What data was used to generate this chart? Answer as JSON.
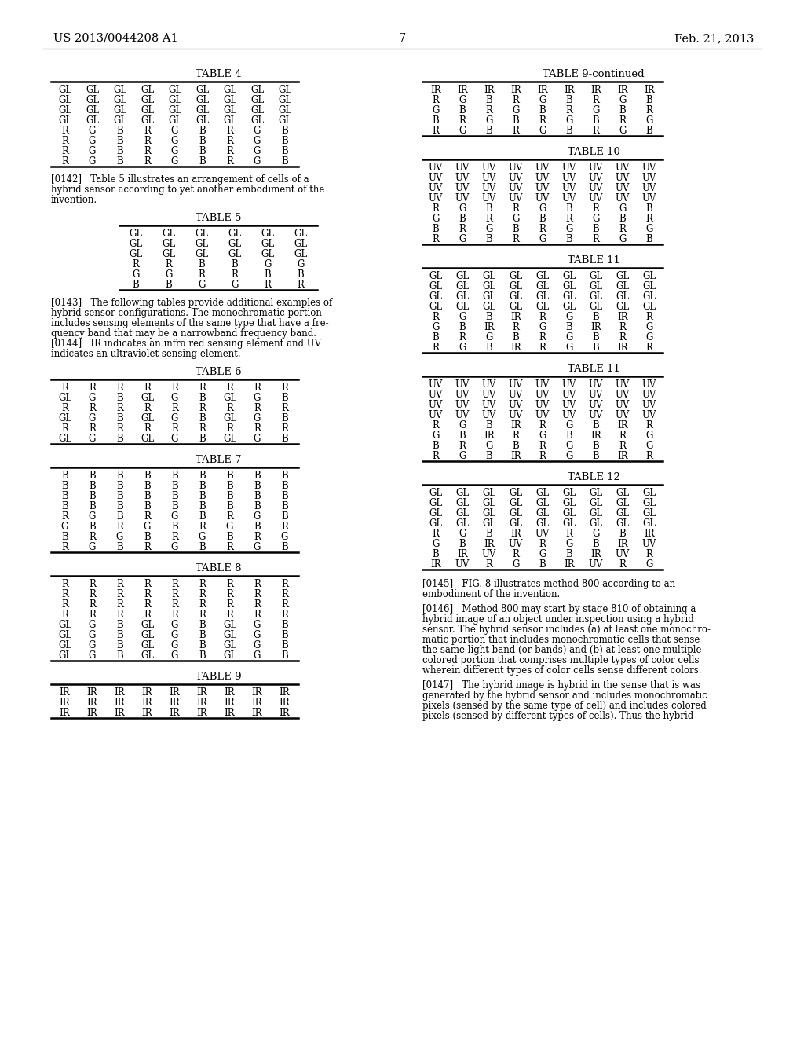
{
  "header_left": "US 2013/0044208 A1",
  "header_right": "Feb. 21, 2013",
  "page_number": "7",
  "background_color": "#ffffff",
  "tables": {
    "table4": {
      "title": "TABLE 4",
      "rows": [
        [
          "GL",
          "GL",
          "GL",
          "GL",
          "GL",
          "GL",
          "GL",
          "GL",
          "GL"
        ],
        [
          "GL",
          "GL",
          "GL",
          "GL",
          "GL",
          "GL",
          "GL",
          "GL",
          "GL"
        ],
        [
          "GL",
          "GL",
          "GL",
          "GL",
          "GL",
          "GL",
          "GL",
          "GL",
          "GL"
        ],
        [
          "GL",
          "GL",
          "GL",
          "GL",
          "GL",
          "GL",
          "GL",
          "GL",
          "GL"
        ],
        [
          "R",
          "G",
          "B",
          "R",
          "G",
          "B",
          "R",
          "G",
          "B"
        ],
        [
          "R",
          "G",
          "B",
          "R",
          "G",
          "B",
          "R",
          "G",
          "B"
        ],
        [
          "R",
          "G",
          "B",
          "R",
          "G",
          "B",
          "R",
          "G",
          "B"
        ],
        [
          "R",
          "G",
          "B",
          "R",
          "G",
          "B",
          "R",
          "G",
          "B"
        ]
      ]
    },
    "table5": {
      "title": "TABLE 5",
      "rows": [
        [
          "GL",
          "GL",
          "GL",
          "GL",
          "GL",
          "GL"
        ],
        [
          "GL",
          "GL",
          "GL",
          "GL",
          "GL",
          "GL"
        ],
        [
          "GL",
          "GL",
          "GL",
          "GL",
          "GL",
          "GL"
        ],
        [
          "R",
          "R",
          "B",
          "B",
          "G",
          "G"
        ],
        [
          "G",
          "G",
          "R",
          "R",
          "B",
          "B"
        ],
        [
          "B",
          "B",
          "G",
          "G",
          "R",
          "R"
        ]
      ]
    },
    "table6": {
      "title": "TABLE 6",
      "rows": [
        [
          "R",
          "R",
          "R",
          "R",
          "R",
          "R",
          "R",
          "R",
          "R"
        ],
        [
          "GL",
          "G",
          "B",
          "GL",
          "G",
          "B",
          "GL",
          "G",
          "B"
        ],
        [
          "R",
          "R",
          "R",
          "R",
          "R",
          "R",
          "R",
          "R",
          "R"
        ],
        [
          "GL",
          "G",
          "B",
          "GL",
          "G",
          "B",
          "GL",
          "G",
          "B"
        ],
        [
          "R",
          "R",
          "R",
          "R",
          "R",
          "R",
          "R",
          "R",
          "R"
        ],
        [
          "GL",
          "G",
          "B",
          "GL",
          "G",
          "B",
          "GL",
          "G",
          "B"
        ]
      ]
    },
    "table7": {
      "title": "TABLE 7",
      "rows": [
        [
          "B",
          "B",
          "B",
          "B",
          "B",
          "B",
          "B",
          "B",
          "B"
        ],
        [
          "B",
          "B",
          "B",
          "B",
          "B",
          "B",
          "B",
          "B",
          "B"
        ],
        [
          "B",
          "B",
          "B",
          "B",
          "B",
          "B",
          "B",
          "B",
          "B"
        ],
        [
          "B",
          "B",
          "B",
          "B",
          "B",
          "B",
          "B",
          "B",
          "B"
        ],
        [
          "R",
          "G",
          "B",
          "R",
          "G",
          "B",
          "R",
          "G",
          "B"
        ],
        [
          "G",
          "B",
          "R",
          "G",
          "B",
          "R",
          "G",
          "B",
          "R"
        ],
        [
          "B",
          "R",
          "G",
          "B",
          "R",
          "G",
          "B",
          "R",
          "G"
        ],
        [
          "R",
          "G",
          "B",
          "R",
          "G",
          "B",
          "R",
          "G",
          "B"
        ]
      ]
    },
    "table8": {
      "title": "TABLE 8",
      "rows": [
        [
          "R",
          "R",
          "R",
          "R",
          "R",
          "R",
          "R",
          "R",
          "R"
        ],
        [
          "R",
          "R",
          "R",
          "R",
          "R",
          "R",
          "R",
          "R",
          "R"
        ],
        [
          "R",
          "R",
          "R",
          "R",
          "R",
          "R",
          "R",
          "R",
          "R"
        ],
        [
          "R",
          "R",
          "R",
          "R",
          "R",
          "R",
          "R",
          "R",
          "R"
        ],
        [
          "GL",
          "G",
          "B",
          "GL",
          "G",
          "B",
          "GL",
          "G",
          "B"
        ],
        [
          "GL",
          "G",
          "B",
          "GL",
          "G",
          "B",
          "GL",
          "G",
          "B"
        ],
        [
          "GL",
          "G",
          "B",
          "GL",
          "G",
          "B",
          "GL",
          "G",
          "B"
        ],
        [
          "GL",
          "G",
          "B",
          "GL",
          "G",
          "B",
          "GL",
          "G",
          "B"
        ]
      ]
    },
    "table9": {
      "title": "TABLE 9",
      "rows": [
        [
          "IR",
          "IR",
          "IR",
          "IR",
          "IR",
          "IR",
          "IR",
          "IR",
          "IR"
        ],
        [
          "IR",
          "IR",
          "IR",
          "IR",
          "IR",
          "IR",
          "IR",
          "IR",
          "IR"
        ],
        [
          "IR",
          "IR",
          "IR",
          "IR",
          "IR",
          "IR",
          "IR",
          "IR",
          "IR"
        ]
      ]
    },
    "table9cont": {
      "title": "TABLE 9-continued",
      "rows": [
        [
          "IR",
          "IR",
          "IR",
          "IR",
          "IR",
          "IR",
          "IR",
          "IR",
          "IR"
        ],
        [
          "R",
          "G",
          "B",
          "R",
          "G",
          "B",
          "R",
          "G",
          "B"
        ],
        [
          "G",
          "B",
          "R",
          "G",
          "B",
          "R",
          "G",
          "B",
          "R"
        ],
        [
          "B",
          "R",
          "G",
          "B",
          "R",
          "G",
          "B",
          "R",
          "G"
        ],
        [
          "R",
          "G",
          "B",
          "R",
          "G",
          "B",
          "R",
          "G",
          "B"
        ]
      ]
    },
    "table10": {
      "title": "TABLE 10",
      "rows": [
        [
          "UV",
          "UV",
          "UV",
          "UV",
          "UV",
          "UV",
          "UV",
          "UV",
          "UV"
        ],
        [
          "UV",
          "UV",
          "UV",
          "UV",
          "UV",
          "UV",
          "UV",
          "UV",
          "UV"
        ],
        [
          "UV",
          "UV",
          "UV",
          "UV",
          "UV",
          "UV",
          "UV",
          "UV",
          "UV"
        ],
        [
          "UV",
          "UV",
          "UV",
          "UV",
          "UV",
          "UV",
          "UV",
          "UV",
          "UV"
        ],
        [
          "R",
          "G",
          "B",
          "R",
          "G",
          "B",
          "R",
          "G",
          "B"
        ],
        [
          "G",
          "B",
          "R",
          "G",
          "B",
          "R",
          "G",
          "B",
          "R"
        ],
        [
          "B",
          "R",
          "G",
          "B",
          "R",
          "G",
          "B",
          "R",
          "G"
        ],
        [
          "R",
          "G",
          "B",
          "R",
          "G",
          "B",
          "R",
          "G",
          "B"
        ]
      ]
    },
    "table11a": {
      "title": "TABLE 11",
      "rows": [
        [
          "GL",
          "GL",
          "GL",
          "GL",
          "GL",
          "GL",
          "GL",
          "GL",
          "GL"
        ],
        [
          "GL",
          "GL",
          "GL",
          "GL",
          "GL",
          "GL",
          "GL",
          "GL",
          "GL"
        ],
        [
          "GL",
          "GL",
          "GL",
          "GL",
          "GL",
          "GL",
          "GL",
          "GL",
          "GL"
        ],
        [
          "GL",
          "GL",
          "GL",
          "GL",
          "GL",
          "GL",
          "GL",
          "GL",
          "GL"
        ],
        [
          "R",
          "G",
          "B",
          "IR",
          "R",
          "G",
          "B",
          "IR",
          "R"
        ],
        [
          "G",
          "B",
          "IR",
          "R",
          "G",
          "B",
          "IR",
          "R",
          "G"
        ],
        [
          "B",
          "R",
          "G",
          "B",
          "R",
          "G",
          "B",
          "R",
          "G"
        ],
        [
          "R",
          "G",
          "B",
          "IR",
          "R",
          "G",
          "B",
          "IR",
          "R"
        ]
      ]
    },
    "table11b": {
      "title": "TABLE 11",
      "rows": [
        [
          "UV",
          "UV",
          "UV",
          "UV",
          "UV",
          "UV",
          "UV",
          "UV",
          "UV"
        ],
        [
          "UV",
          "UV",
          "UV",
          "UV",
          "UV",
          "UV",
          "UV",
          "UV",
          "UV"
        ],
        [
          "UV",
          "UV",
          "UV",
          "UV",
          "UV",
          "UV",
          "UV",
          "UV",
          "UV"
        ],
        [
          "UV",
          "UV",
          "UV",
          "UV",
          "UV",
          "UV",
          "UV",
          "UV",
          "UV"
        ],
        [
          "R",
          "G",
          "B",
          "IR",
          "R",
          "G",
          "B",
          "IR",
          "R"
        ],
        [
          "G",
          "B",
          "IR",
          "R",
          "G",
          "B",
          "IR",
          "R",
          "G"
        ],
        [
          "B",
          "R",
          "G",
          "B",
          "R",
          "G",
          "B",
          "R",
          "G"
        ],
        [
          "R",
          "G",
          "B",
          "IR",
          "R",
          "G",
          "B",
          "IR",
          "R"
        ]
      ]
    },
    "table12": {
      "title": "TABLE 12",
      "rows": [
        [
          "GL",
          "GL",
          "GL",
          "GL",
          "GL",
          "GL",
          "GL",
          "GL",
          "GL"
        ],
        [
          "GL",
          "GL",
          "GL",
          "GL",
          "GL",
          "GL",
          "GL",
          "GL",
          "GL"
        ],
        [
          "GL",
          "GL",
          "GL",
          "GL",
          "GL",
          "GL",
          "GL",
          "GL",
          "GL"
        ],
        [
          "GL",
          "GL",
          "GL",
          "GL",
          "GL",
          "GL",
          "GL",
          "GL",
          "GL"
        ],
        [
          "R",
          "G",
          "B",
          "IR",
          "UV",
          "R",
          "G",
          "B",
          "IR"
        ],
        [
          "G",
          "B",
          "IR",
          "UV",
          "R",
          "G",
          "B",
          "IR",
          "UV"
        ],
        [
          "B",
          "IR",
          "UV",
          "R",
          "G",
          "B",
          "IR",
          "UV",
          "R"
        ],
        [
          "IR",
          "UV",
          "R",
          "G",
          "B",
          "IR",
          "UV",
          "R",
          "G"
        ]
      ]
    }
  },
  "p142_lines": [
    "[0142]   Table 5 illustrates an arrangement of cells of a",
    "hybrid sensor according to yet another embodiment of the",
    "invention."
  ],
  "p143_lines": [
    "[0143]   The following tables provide additional examples of",
    "hybrid sensor configurations. The monochromatic portion",
    "includes sensing elements of the same type that have a fre-",
    "quency band that may be a narrowband frequency band."
  ],
  "p144_lines": [
    "[0144]   IR indicates an infra red sensing element and UV",
    "indicates an ultraviolet sensing element."
  ],
  "p145_lines": [
    "[0145]   FIG. 8 illustrates method 800 according to an",
    "embodiment of the invention."
  ],
  "p146_lines": [
    "[0146]   Method 800 may start by stage 810 of obtaining a",
    "hybrid image of an object under inspection using a hybrid",
    "sensor. The hybrid sensor includes (a) at least one monochro-",
    "matic portion that includes monochromatic cells that sense",
    "the same light band (or bands) and (b) at least one multiple-",
    "colored portion that comprises multiple types of color cells",
    "wherein different types of color cells sense different colors."
  ],
  "p147_lines": [
    "[0147]   The hybrid image is hybrid in the sense that is was",
    "generated by the hybrid sensor and includes monochromatic",
    "pixels (sensed by the same type of cell) and includes colored",
    "pixels (sensed by different types of cells). Thus the hybrid"
  ]
}
